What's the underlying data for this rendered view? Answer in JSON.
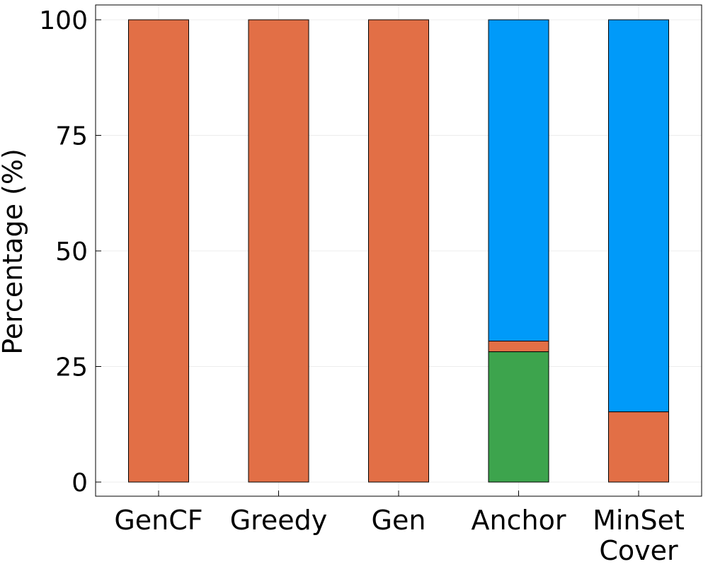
{
  "chart_data": {
    "type": "bar",
    "stacked": true,
    "title": "",
    "xlabel": "",
    "ylabel": "Percentage (%)",
    "ylim": [
      0,
      100
    ],
    "yticks": [
      0,
      25,
      50,
      75,
      100
    ],
    "grid": true,
    "legend": "none",
    "categories": [
      [
        "GenCF"
      ],
      [
        "Greedy"
      ],
      [
        "Gen"
      ],
      [
        "Anchor"
      ],
      [
        "MinSet",
        "Cover"
      ]
    ],
    "series": [
      {
        "name": "green",
        "color": "#3da44d",
        "values": [
          0,
          0,
          0,
          28.2,
          0
        ]
      },
      {
        "name": "orange",
        "color": "#e26f46",
        "values": [
          100,
          100,
          100,
          2.3,
          15.2
        ]
      },
      {
        "name": "blue",
        "color": "#009af9",
        "values": [
          0,
          0,
          0,
          69.5,
          84.8
        ]
      }
    ]
  }
}
